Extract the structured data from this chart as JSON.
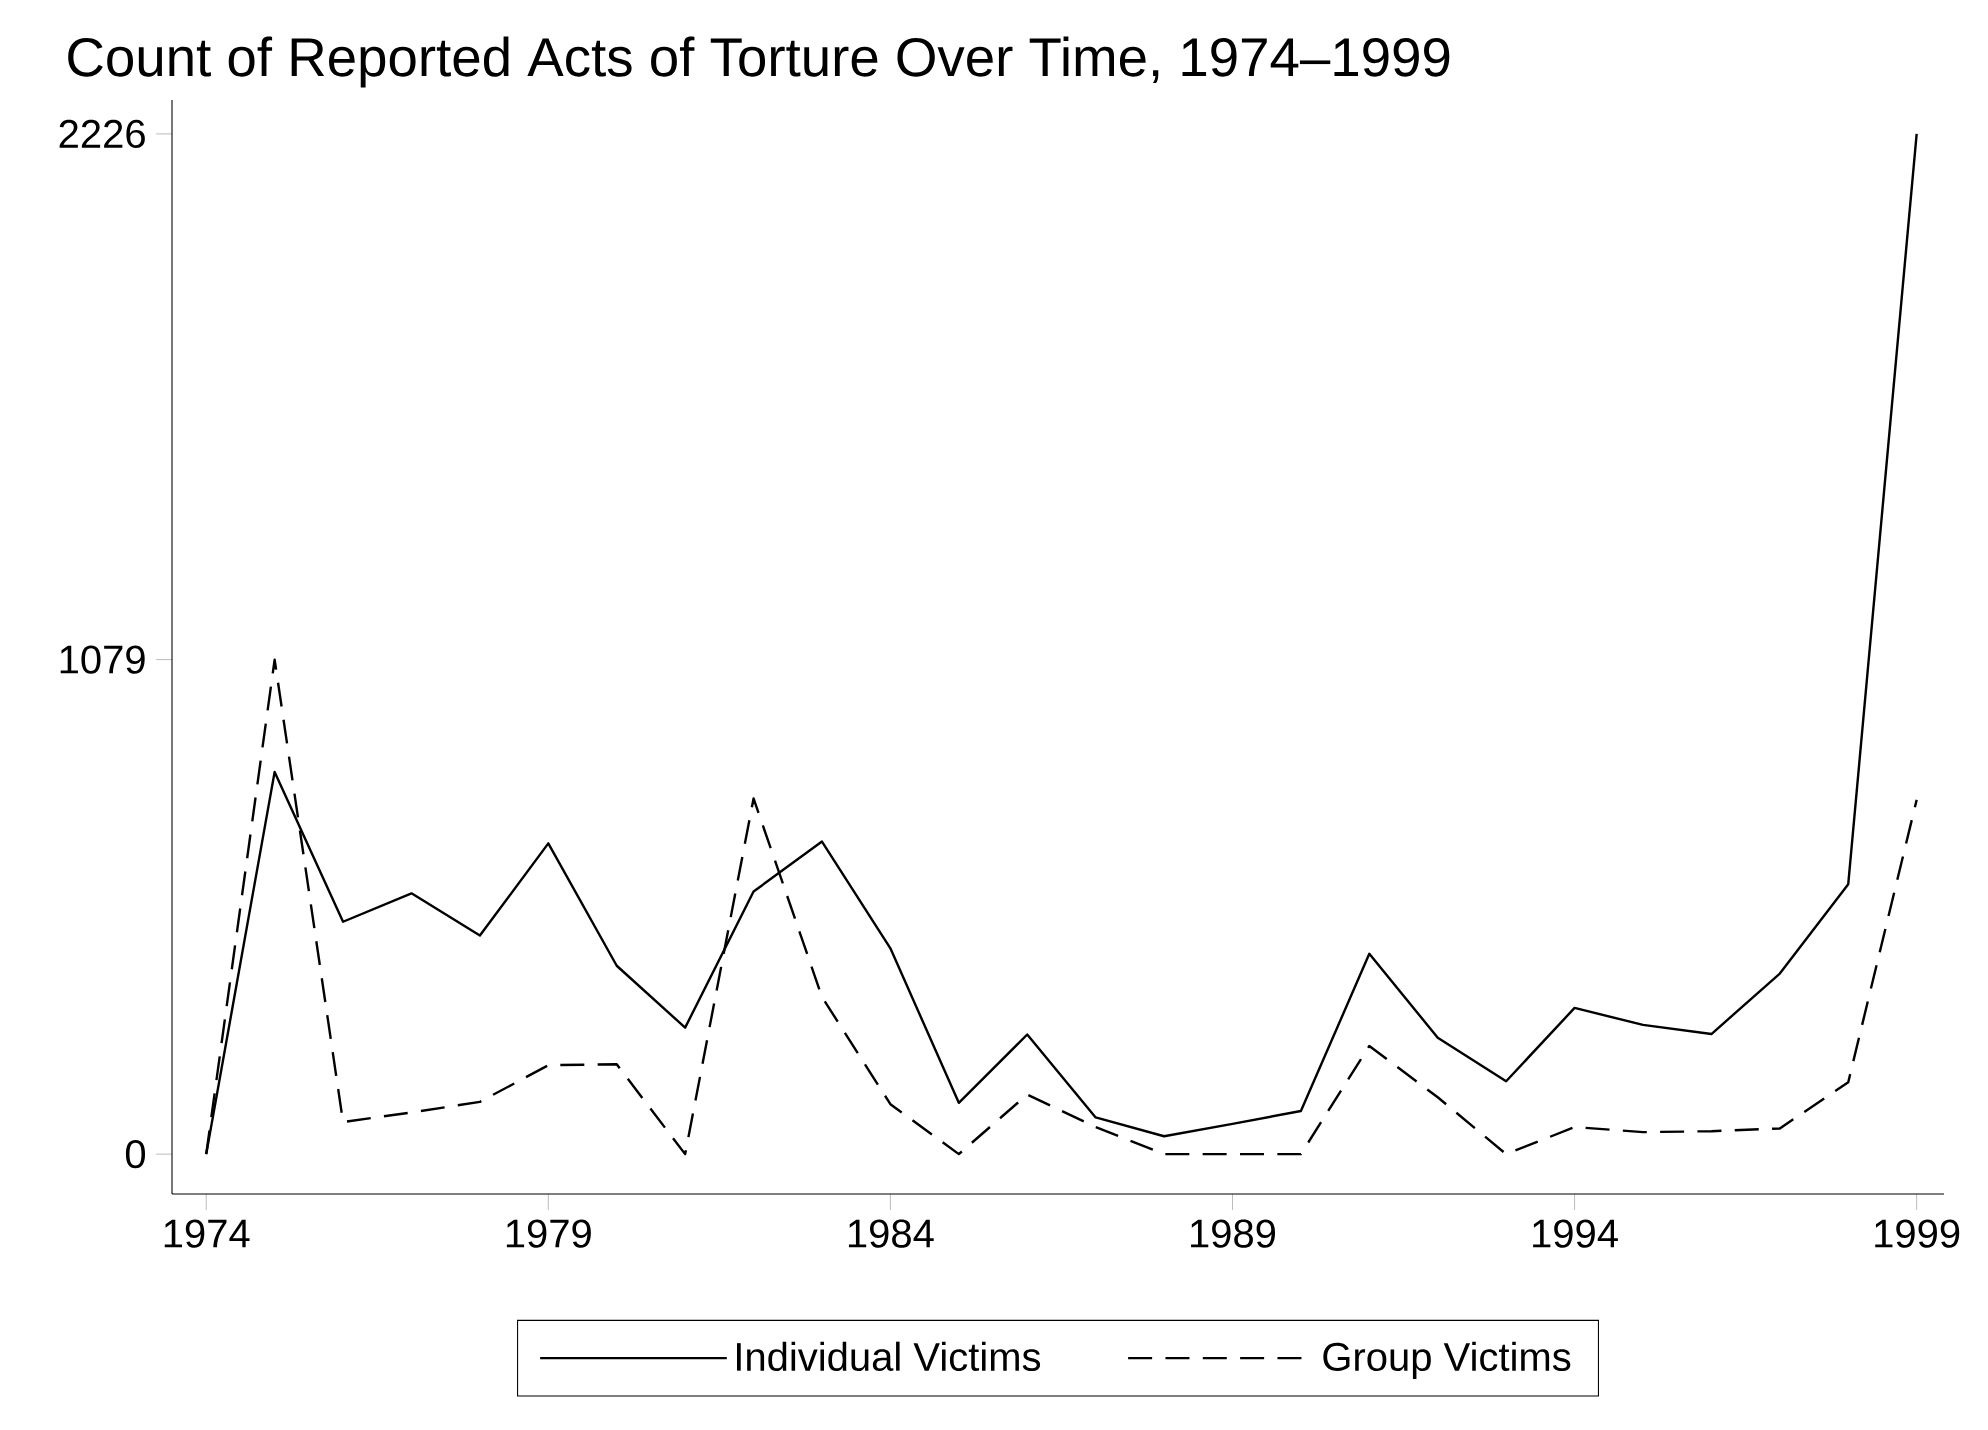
{
  "chart_data": {
    "type": "line",
    "title": "Count of Reported Acts of Torture Over Time, 1974–1999",
    "x": [
      1974,
      1975,
      1976,
      1977,
      1978,
      1979,
      1980,
      1981,
      1982,
      1983,
      1984,
      1985,
      1986,
      1987,
      1988,
      1989,
      1990,
      1991,
      1992,
      1993,
      1994,
      1995,
      1996,
      1997,
      1998,
      1999
    ],
    "series": [
      {
        "name": "Individual Victims",
        "color": "#000000",
        "line_style": "solid",
        "values": [
          0,
          834,
          507,
          569,
          477,
          678,
          411,
          276,
          573,
          682,
          449,
          112,
          261,
          80,
          39,
          66,
          94,
          437,
          254,
          159,
          319,
          282,
          262,
          394,
          589,
          2226
        ]
      },
      {
        "name": "Group Victims",
        "color": "#000000",
        "line_style": "dashed",
        "values": [
          0,
          1079,
          70,
          91,
          114,
          194,
          196,
          0,
          776,
          343,
          109,
          0,
          130,
          59,
          0,
          0,
          0,
          236,
          124,
          0,
          59,
          48,
          50,
          56,
          157,
          773
        ]
      }
    ],
    "xlim": [
      1973.5,
      1999.4
    ],
    "ylim": [
      -87,
      2300
    ],
    "xticks": [
      1974,
      1979,
      1984,
      1989,
      1994,
      1999
    ],
    "yticks": [
      0,
      1079,
      2226
    ],
    "grid": false,
    "legend": "bottom"
  }
}
